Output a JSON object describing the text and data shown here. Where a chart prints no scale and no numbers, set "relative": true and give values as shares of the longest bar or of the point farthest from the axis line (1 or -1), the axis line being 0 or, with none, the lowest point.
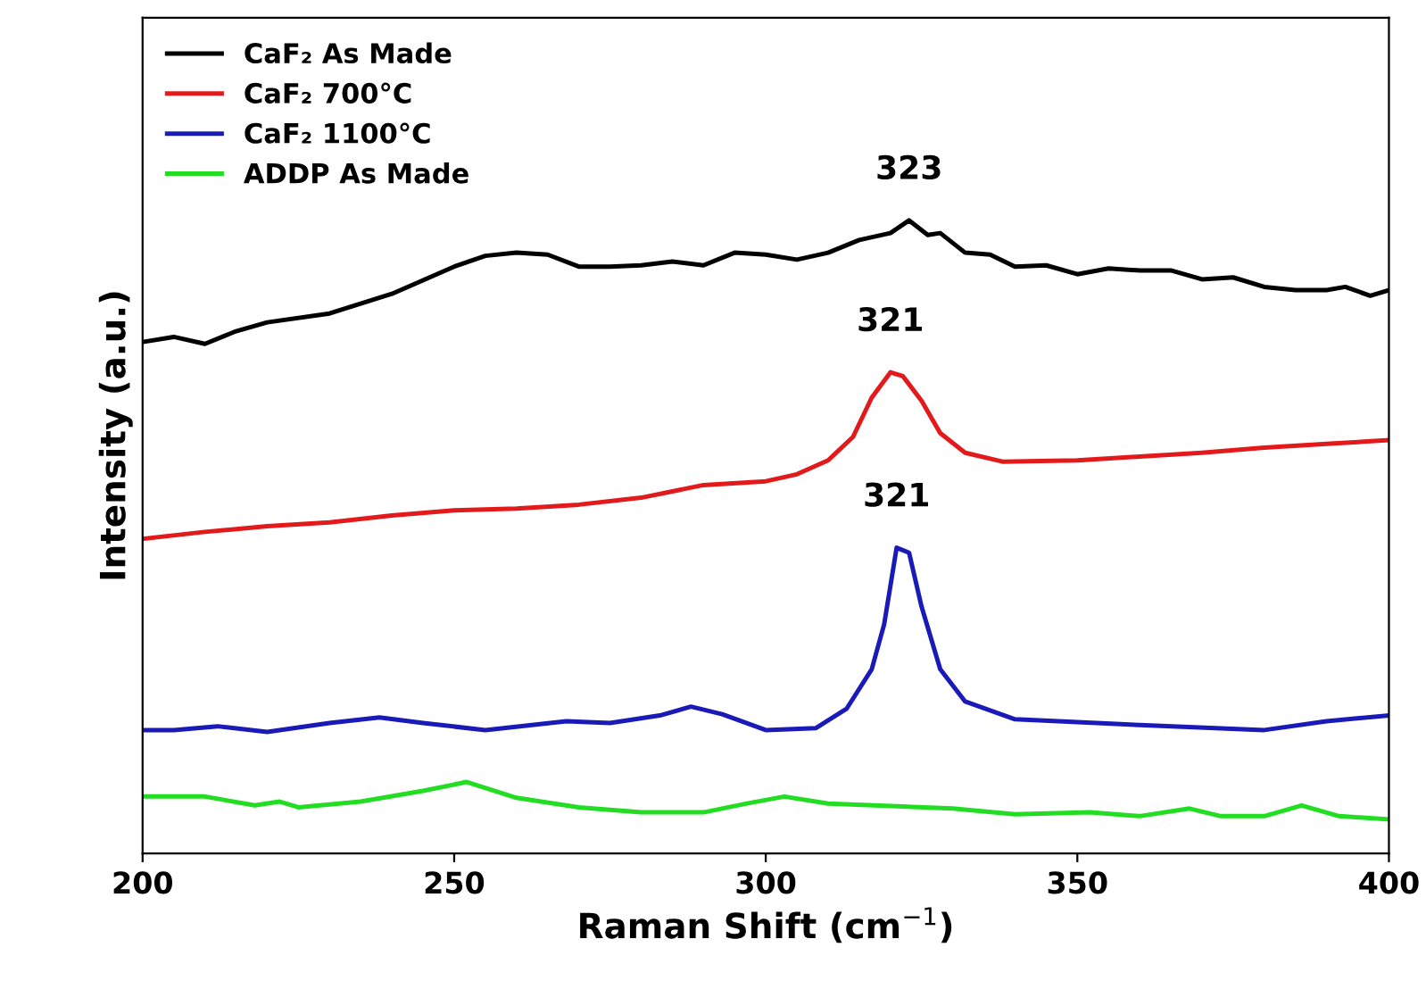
{
  "chart_data": {
    "type": "line",
    "relative": true,
    "xlabel": "Raman Shift (cm$^{−1}$)",
    "ylabel": "Intensity (a.u.)",
    "xlim": [
      200,
      400
    ],
    "xticks": [
      200,
      250,
      300,
      350,
      400
    ],
    "grid": false,
    "legend": "top left",
    "line_style": "solid",
    "marker": "none",
    "series": [
      {
        "name": "CaF₂ As Made",
        "color": "#000000",
        "x": [
          200,
          205,
          210,
          215,
          220,
          230,
          240,
          250,
          255,
          260,
          265,
          270,
          275,
          280,
          285,
          290,
          295,
          300,
          305,
          310,
          315,
          320,
          323,
          326,
          328,
          332,
          336,
          340,
          345,
          350,
          355,
          360,
          365,
          370,
          375,
          380,
          385,
          390,
          393,
          397,
          400
        ],
        "values": [
          0.808,
          0.816,
          0.805,
          0.825,
          0.839,
          0.853,
          0.884,
          0.927,
          0.944,
          0.949,
          0.946,
          0.927,
          0.927,
          0.929,
          0.935,
          0.929,
          0.949,
          0.946,
          0.938,
          0.949,
          0.969,
          0.98,
          1.0,
          0.977,
          0.98,
          0.949,
          0.946,
          0.927,
          0.929,
          0.915,
          0.924,
          0.921,
          0.921,
          0.907,
          0.91,
          0.895,
          0.89,
          0.89,
          0.895,
          0.881,
          0.89
        ]
      },
      {
        "name": "CaF₂ 700°C",
        "color": "#e31a1c",
        "x": [
          200,
          210,
          220,
          230,
          240,
          250,
          260,
          270,
          280,
          290,
          300,
          305,
          310,
          314,
          317,
          320,
          322,
          325,
          328,
          332,
          338,
          350,
          360,
          370,
          380,
          390,
          400
        ],
        "values": [
          0.497,
          0.508,
          0.517,
          0.523,
          0.534,
          0.542,
          0.545,
          0.551,
          0.562,
          0.582,
          0.588,
          0.599,
          0.621,
          0.658,
          0.72,
          0.76,
          0.754,
          0.715,
          0.664,
          0.633,
          0.619,
          0.621,
          0.627,
          0.633,
          0.641,
          0.647,
          0.653
        ]
      },
      {
        "name": "CaF₂ 1100°C",
        "color": "#1a1ab8",
        "x": [
          200,
          205,
          212,
          220,
          230,
          238,
          245,
          255,
          268,
          275,
          283,
          288,
          293,
          300,
          308,
          313,
          317,
          319,
          321,
          323,
          325,
          328,
          332,
          340,
          360,
          380,
          390,
          400
        ],
        "values": [
          0.195,
          0.195,
          0.201,
          0.192,
          0.206,
          0.215,
          0.206,
          0.195,
          0.209,
          0.206,
          0.218,
          0.232,
          0.22,
          0.195,
          0.198,
          0.229,
          0.291,
          0.362,
          0.483,
          0.475,
          0.39,
          0.291,
          0.24,
          0.212,
          0.203,
          0.195,
          0.209,
          0.218
        ]
      },
      {
        "name": "ADDP As Made",
        "color": "#22dd22",
        "x": [
          200,
          210,
          218,
          222,
          225,
          235,
          245,
          252,
          260,
          270,
          280,
          290,
          297,
          303,
          310,
          330,
          340,
          352,
          360,
          368,
          373,
          380,
          386,
          392,
          400
        ],
        "values": [
          0.09,
          0.09,
          0.076,
          0.082,
          0.073,
          0.082,
          0.099,
          0.113,
          0.088,
          0.073,
          0.065,
          0.065,
          0.079,
          0.09,
          0.079,
          0.071,
          0.062,
          0.065,
          0.059,
          0.071,
          0.059,
          0.059,
          0.076,
          0.059,
          0.054
        ]
      }
    ],
    "annotations": [
      {
        "text": "323",
        "x": 323,
        "y": 1.0
      },
      {
        "text": "321",
        "x": 320,
        "y": 0.76
      },
      {
        "text": "321",
        "x": 321,
        "y": 0.483
      }
    ]
  }
}
